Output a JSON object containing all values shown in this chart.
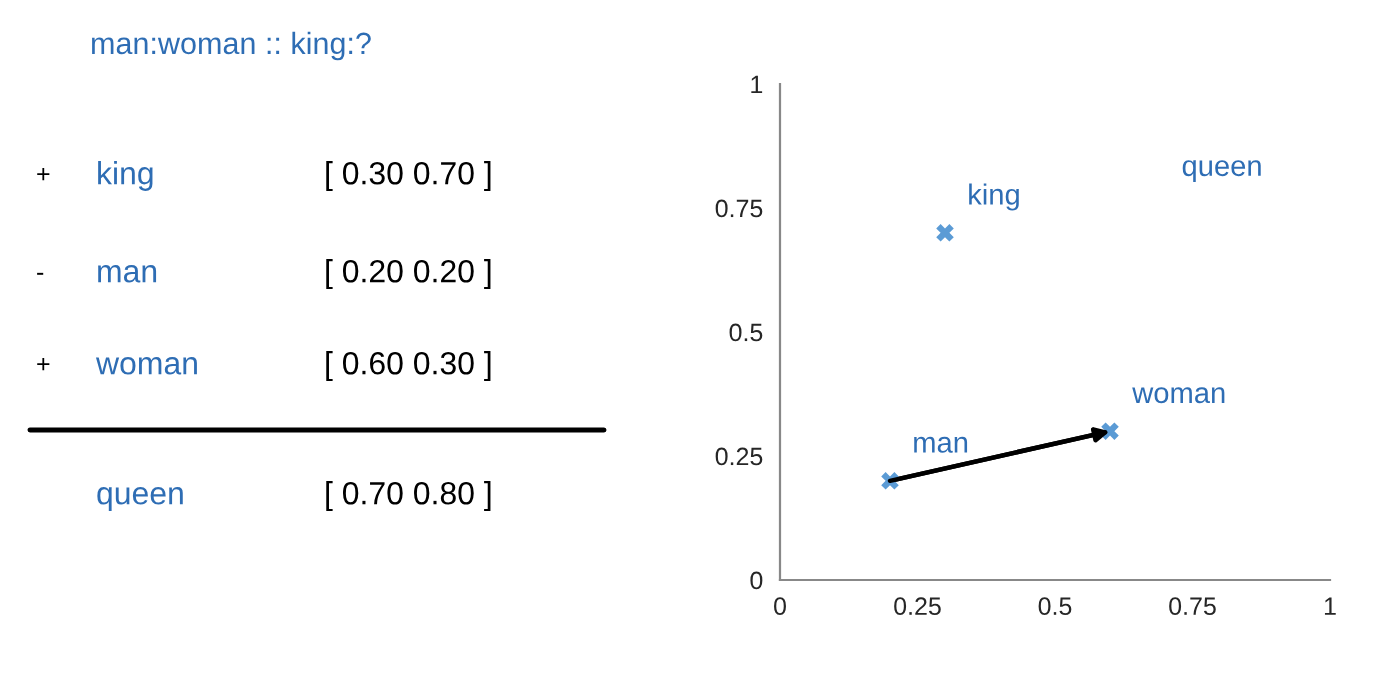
{
  "chart_data": [
    {
      "type": "other",
      "title": "man:woman :: king:?",
      "annotations": [
        "+",
        "king",
        "[ 0.30 0.70 ]",
        "-",
        "man",
        "[ 0.20 0.20 ]",
        "+",
        "woman",
        "[ 0.60 0.30 ]",
        "queen",
        "[ 0.70 0.80 ]"
      ]
    },
    {
      "type": "scatter",
      "xlim": [
        0,
        1
      ],
      "ylim": [
        0,
        1
      ],
      "xticks": [
        0,
        0.25,
        0.5,
        0.75,
        1
      ],
      "yticks": [
        0,
        0.25,
        0.5,
        0.75,
        1
      ],
      "grid": false,
      "series": [
        {
          "type": "scatter",
          "marker": "cross",
          "color": "#5b9bd5",
          "x": [
            0.2,
            0.6,
            0.3
          ],
          "values": [
            0.2,
            0.3,
            0.7
          ]
        },
        {
          "type": "line",
          "marker": "none",
          "color": "#000000",
          "x": [
            0.2,
            0.6
          ],
          "values": [
            0.2,
            0.3
          ]
        }
      ],
      "annotations": [
        {
          "text": "man",
          "x": 0.2,
          "y": 0.2
        },
        {
          "text": "woman",
          "x": 0.6,
          "y": 0.3
        },
        {
          "text": "king",
          "x": 0.3,
          "y": 0.7
        },
        "queen"
      ]
    }
  ]
}
